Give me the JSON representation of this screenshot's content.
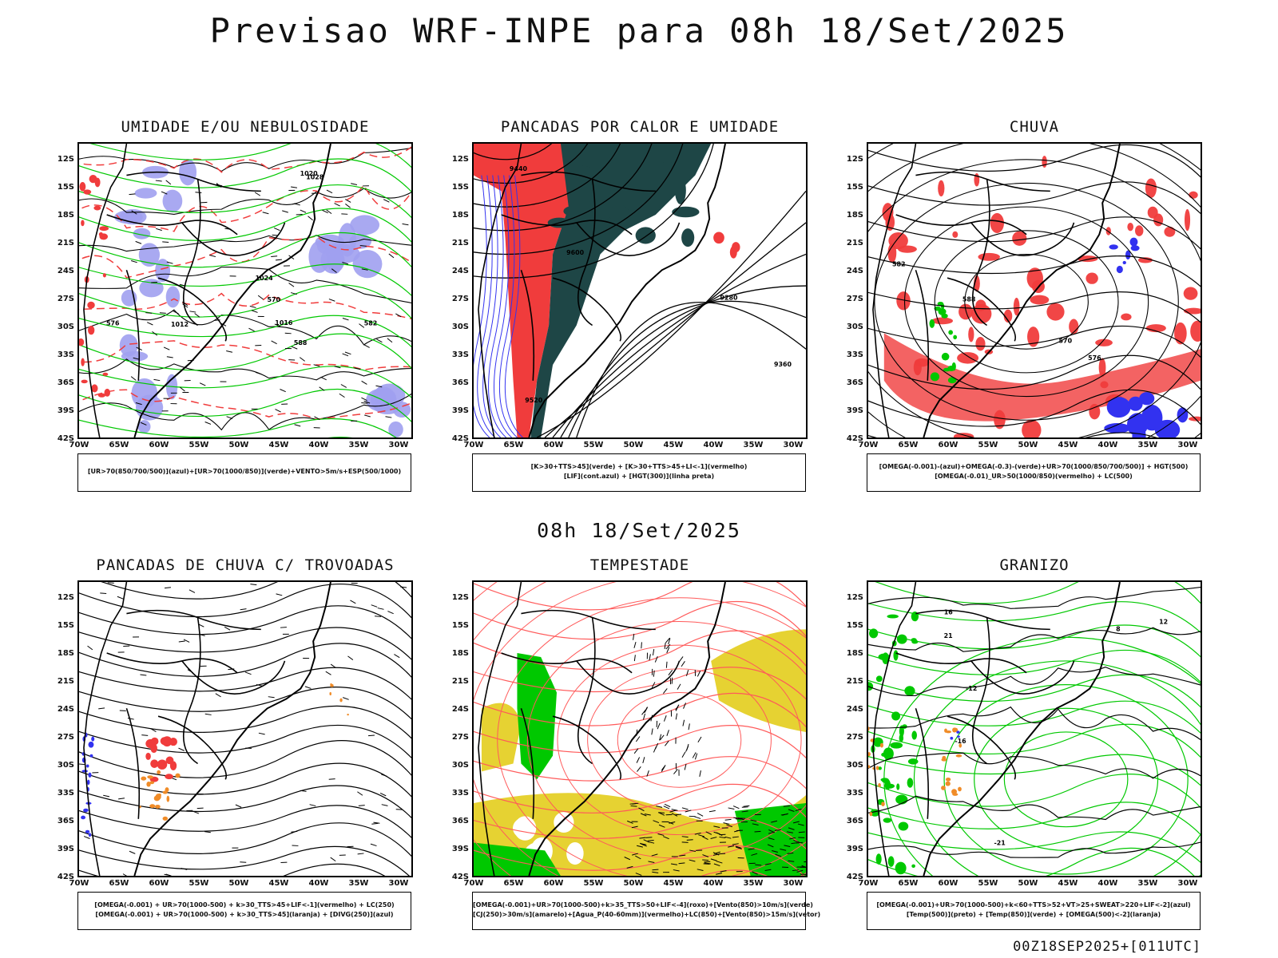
{
  "header": {
    "title": "Previsao WRF-INPE  para 08h 18/Set/2025",
    "mid_date": "08h 18/Set/2025",
    "footer": "00Z18SEP2025+[011UTC]"
  },
  "axes": {
    "lat_labels": [
      "12S",
      "15S",
      "18S",
      "21S",
      "24S",
      "27S",
      "30S",
      "33S",
      "36S",
      "39S",
      "42S"
    ],
    "lon_labels": [
      "70W",
      "65W",
      "60W",
      "55W",
      "50W",
      "45W",
      "40W",
      "35W",
      "30W"
    ]
  },
  "panels": [
    {
      "id": "umidade",
      "title": "UMIDADE E/OU NEBULOSIDADE",
      "legend": [
        "[UR>70(850/700/500)](azul)+[UR>70(1000/850)](verde)+VENTO>5m/s+ESP(500/1000)"
      ],
      "contour_labels": [
        "1012",
        "1016",
        "1020",
        "1024",
        "1028",
        "570",
        "576",
        "582",
        "588"
      ]
    },
    {
      "id": "pancadas-calor",
      "title": "PANCADAS POR CALOR E UMIDADE",
      "legend": [
        "[K>30+TTS>45](verde) + [K>30+TTS>45+LI<-1](vermelho)",
        "[LIF](cont.azul) + [HGT(300)](linha preta)"
      ],
      "contour_labels": [
        "9600",
        "9520",
        "9440",
        "9360",
        "9280"
      ]
    },
    {
      "id": "chuva",
      "title": "CHUVA",
      "legend": [
        "[OMEGA(-0.001)-(azul)+OMEGA(-0.3)-(verde)+UR>70(1000/850/700/500)] + HGT(500)",
        "[OMEGA(-0.01)_UR>50(1000/850)(vermelho) + LC(500)"
      ],
      "contour_labels": [
        "588",
        "582",
        "576",
        "570"
      ]
    },
    {
      "id": "trovoadas",
      "title": "PANCADAS DE CHUVA C/ TROVOADAS",
      "legend": [
        "[OMEGA(-0.001) + UR>70(1000-500) + k>30_TTS>45+LIF<-1](vermelho) + LC(250)",
        "[OMEGA(-0.001) + UR>70(1000-500) + k>30_TTS>45](laranja) + [DIVG(250)](azul)"
      ],
      "contour_labels": []
    },
    {
      "id": "tempestade",
      "title": "TEMPESTADE",
      "legend": [
        "[OMEGA(-0.001)+UR>70(1000-500)+k>35_TTS>50+LIF<-4](roxo)+[Vento(850)>10m/s](verde)",
        "[CJ(250)>30m/s](amarelo)+[Agua_P(40-60mm)](vermelho)+LC(850)+[Vento(850)>15m/s](vetor)"
      ],
      "contour_labels": []
    },
    {
      "id": "granizo",
      "title": "GRANIZO",
      "legend": [
        "[OMEGA(-0.001)+UR>70(1000-500)+k<60+TTS>52+VT>25+SWEAT>220+LIF<-2](azul)",
        "[Temp(500)](preto) + [Temp(850)](verde) + [OMEGA(500)<-2](laranja)"
      ],
      "contour_labels": [
        "-12",
        "-16",
        "-21",
        "12",
        "16",
        "21",
        "8"
      ]
    }
  ],
  "colors": {
    "border": "#000000",
    "green": "#00c800",
    "red": "#f03c3c",
    "blue": "#3232f0",
    "lavender": "#a0a0f0",
    "darkteal": "#1e4646",
    "yellow": "#e6d232",
    "orange": "#f08c28",
    "salmon": "#ff5a5a"
  }
}
